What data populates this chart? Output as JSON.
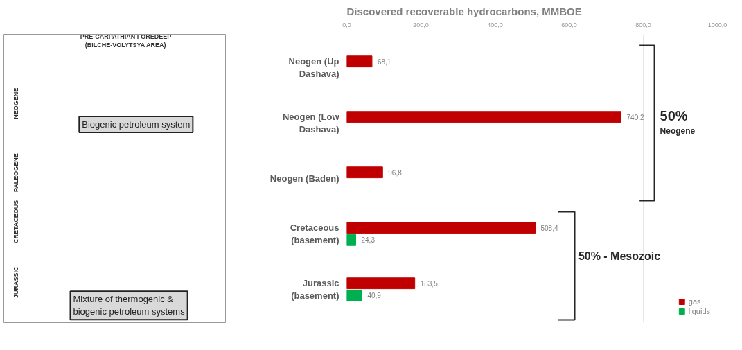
{
  "chart_data": {
    "type": "bar",
    "orientation": "horizontal",
    "title": "Discovered recoverable hydrocarbons, MMBOE",
    "categories": [
      "Neogen (Up Dashava)",
      "Neogen (Low Dashava)",
      "Neogen (Baden)",
      "Cretaceous (basement)",
      "Jurassic (basement)"
    ],
    "series": [
      {
        "name": "gas",
        "color": "#c00000",
        "values": [
          68.1,
          740.2,
          96.8,
          508.4,
          183.5
        ],
        "value_labels": [
          "68,1",
          "740,2",
          "96,8",
          "508,4",
          "183,5"
        ]
      },
      {
        "name": "liquids",
        "color": "#00b050",
        "values": [
          null,
          null,
          null,
          24.3,
          40.9
        ],
        "value_labels": [
          null,
          null,
          null,
          "24,3",
          "40,9"
        ]
      }
    ],
    "xlim": [
      0,
      1000
    ],
    "xticks": [
      {
        "value": 0,
        "label": "0,0"
      },
      {
        "value": 200,
        "label": "200,0"
      },
      {
        "value": 400,
        "label": "400,0"
      },
      {
        "value": 600,
        "label": "600,0"
      },
      {
        "value": 800,
        "label": "800,0"
      },
      {
        "value": 1000,
        "label": "1000,0"
      }
    ],
    "grid": "x",
    "legend": "bottom right",
    "annotations": [
      "50%",
      "Neogene",
      "50% - Mesozoic",
      "PRE-CARPATHIAN FOREDEEP (BILCHE-VOLYTSYA AREA)",
      "NEOGENE",
      "PALEOGENE",
      "CRETACEOUS",
      "JURASSIC",
      "Biogenic petroleum system",
      "Mixture of  thermogenic & biogenic petroleum systems"
    ]
  }
}
